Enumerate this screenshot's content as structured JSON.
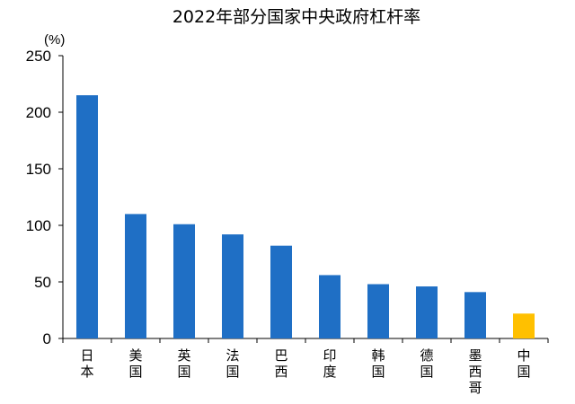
{
  "chart_data": {
    "type": "bar",
    "title": "2022年部分国家中央政府杠杆率",
    "unit_label": "(%)",
    "categories": [
      "日本",
      "美国",
      "英国",
      "法国",
      "巴西",
      "印度",
      "韩国",
      "德国",
      "墨西哥",
      "中国"
    ],
    "values": [
      215,
      110,
      101,
      92,
      82,
      56,
      48,
      46,
      41,
      22
    ],
    "ylim": [
      0,
      250
    ],
    "yticks": [
      0,
      50,
      100,
      150,
      200,
      250
    ],
    "grid": false,
    "colors": {
      "default": "#1f6fc5",
      "highlight": "#ffc000",
      "highlight_category": "中国"
    }
  }
}
